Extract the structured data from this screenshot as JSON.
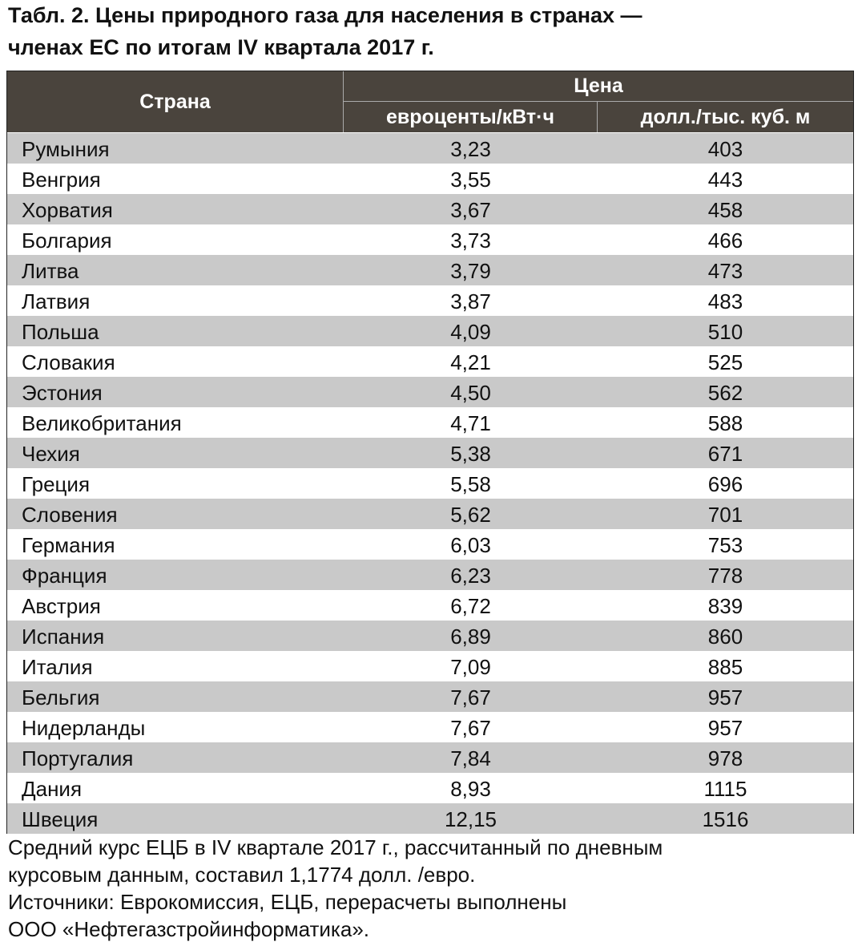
{
  "header": {
    "title": [
      "Табл. 2. Цены природного газа для населения в странах —",
      "членах ЕС по итогам IV квартала 2017 г."
    ]
  },
  "table": {
    "columns": {
      "country": "Страна",
      "price": "Цена",
      "eur": "евроценты/кВт·ч",
      "usd": "долл./тыс. куб. м"
    },
    "rows": [
      [
        "Румыния",
        "3,23",
        "403"
      ],
      [
        "Венгрия",
        "3,55",
        "443"
      ],
      [
        "Хорватия",
        "3,67",
        "458"
      ],
      [
        "Болгария",
        "3,73",
        "466"
      ],
      [
        "Литва",
        "3,79",
        "473"
      ],
      [
        "Латвия",
        "3,87",
        "483"
      ],
      [
        "Польша",
        "4,09",
        "510"
      ],
      [
        "Словакия",
        "4,21",
        "525"
      ],
      [
        "Эстония",
        "4,50",
        "562"
      ],
      [
        "Великобритания",
        "4,71",
        "588"
      ],
      [
        "Чехия",
        "5,38",
        "671"
      ],
      [
        "Греция",
        "5,58",
        "696"
      ],
      [
        "Словения",
        "5,62",
        "701"
      ],
      [
        "Германия",
        "6,03",
        "753"
      ],
      [
        "Франция",
        "6,23",
        "778"
      ],
      [
        "Австрия",
        "6,72",
        "839"
      ],
      [
        "Испания",
        "6,89",
        "860"
      ],
      [
        "Италия",
        "7,09",
        "885"
      ],
      [
        "Бельгия",
        "7,67",
        "957"
      ],
      [
        "Нидерланды",
        "7,67",
        "957"
      ],
      [
        "Португалия",
        "7,84",
        "978"
      ],
      [
        "Дания",
        "8,93",
        "1115"
      ],
      [
        "Швеция",
        "12,15",
        "1516"
      ]
    ]
  },
  "note": [
    "Средний курс ЕЦБ в IV квартале 2017 г., рассчитанный по дневным",
    "курсовым данным, составил 1,1774 долл. /евро.",
    "Источники: Еврокомиссия, ЕЦБ, перерасчеты выполнены",
    "ООО  «Нефтегазстройинформатика»."
  ]
}
